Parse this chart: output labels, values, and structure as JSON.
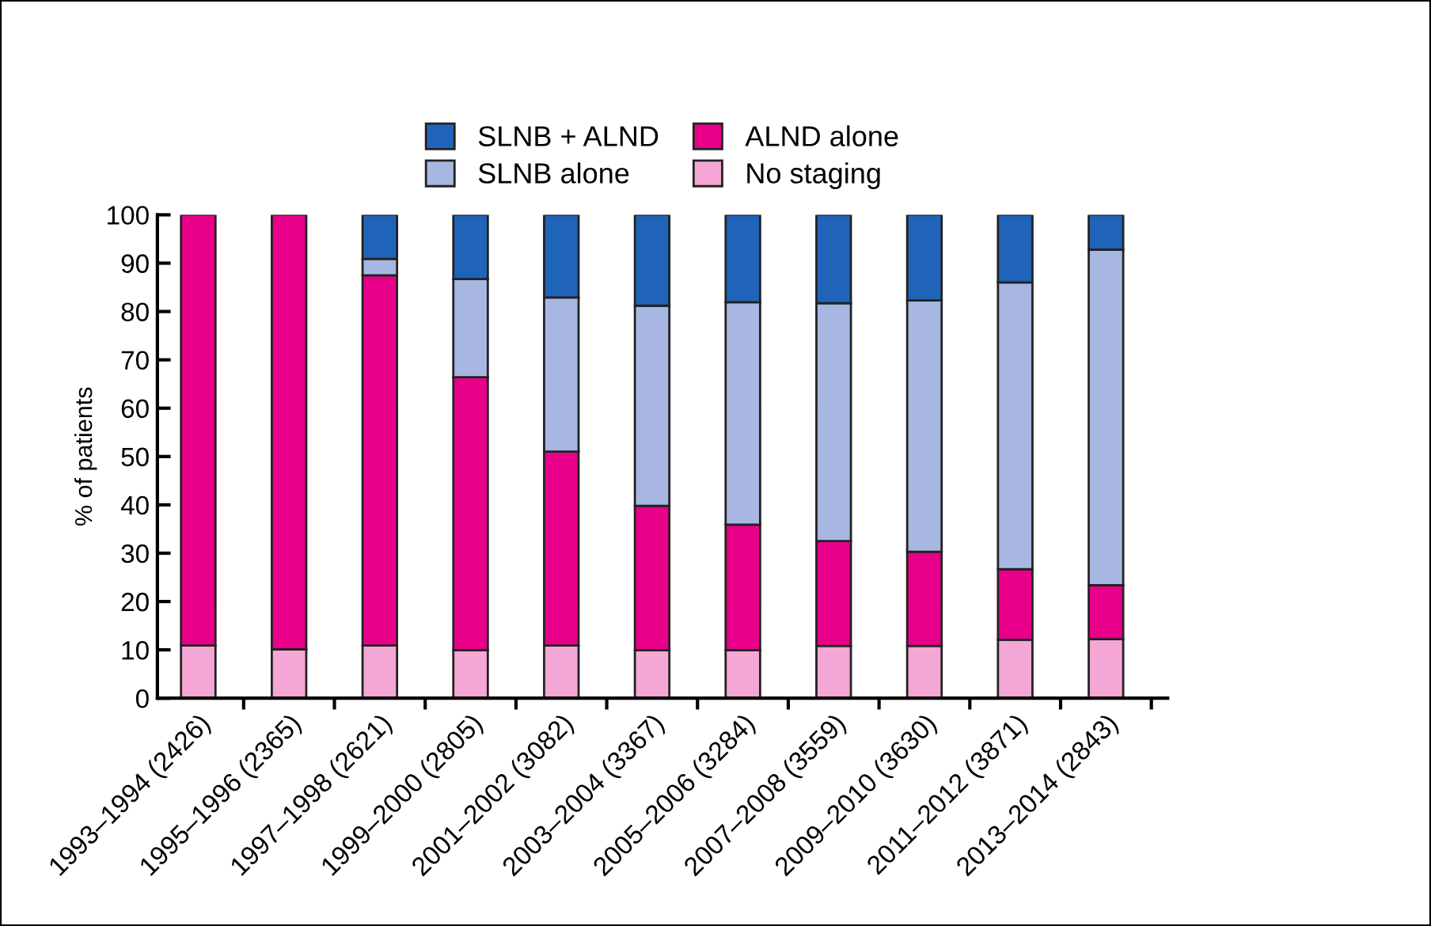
{
  "chart_data": {
    "type": "bar",
    "stacked": true,
    "ylabel": "% of patients",
    "categories": [
      "1993–1994 (2426)",
      "1995–1996 (2365)",
      "1997–1998 (2621)",
      "1999–2000 (2805)",
      "2001–2002 (3082)",
      "2003–2004 (3367)",
      "2005–2006 (3284)",
      "2007–2008 (3559)",
      "2009–2010 (3630)",
      "2011–2012 (3871)",
      "2013–2014 (2843)"
    ],
    "series": [
      {
        "name": "No staging",
        "color": "#f4a6d4",
        "values": [
          10.9,
          10.1,
          10.9,
          9.9,
          10.9,
          9.9,
          9.9,
          10.8,
          10.8,
          12.1,
          12.2
        ]
      },
      {
        "name": "ALND alone",
        "color": "#e8008a",
        "values": [
          89.1,
          89.9,
          76.6,
          56.5,
          40.1,
          29.9,
          26.0,
          21.7,
          19.5,
          14.6,
          11.2
        ]
      },
      {
        "name": "SLNB alone",
        "color": "#a7b7e1",
        "values": [
          null,
          null,
          3.4,
          20.3,
          31.9,
          41.4,
          46.0,
          49.2,
          52.0,
          59.3,
          69.4
        ]
      },
      {
        "name": "SLNB + ALND",
        "color": "#1f64b8",
        "values": [
          null,
          null,
          9.1,
          13.3,
          17.1,
          18.8,
          18.1,
          18.3,
          17.7,
          14.0,
          7.2
        ]
      }
    ],
    "ylim": [
      0,
      100
    ],
    "yticks": [
      0,
      10,
      20,
      30,
      40,
      50,
      60,
      70,
      80,
      90,
      100
    ],
    "grid": false,
    "legend": "top"
  }
}
